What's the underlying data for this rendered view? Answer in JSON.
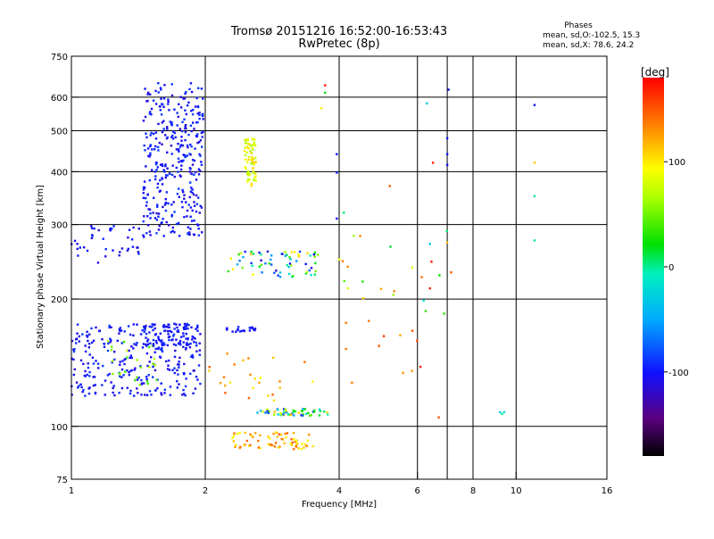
{
  "chart_data": {
    "type": "scatter",
    "title": "Tromsø 20151216 16:52:00-16:53:43",
    "subtitle": "RwPretec (8p)",
    "phases": {
      "heading": "Phases",
      "line_o": "mean, sd,O:-102.5, 15.3",
      "line_x": "mean, sd,X:  78.6, 24.2"
    },
    "xlabel": "Frequency [MHz]",
    "ylabel": "Stationary phase Virtual Height [km]",
    "x_scale": "log",
    "y_scale": "log",
    "xlim": [
      1,
      16
    ],
    "ylim": [
      75,
      750
    ],
    "x_ticks": [
      {
        "value": 1,
        "label": "1"
      },
      {
        "value": 2,
        "label": "2"
      },
      {
        "value": 4,
        "label": "4"
      },
      {
        "value": 6,
        "label": "6"
      },
      {
        "value": 8,
        "label": "8"
      },
      {
        "value": 10,
        "label": "10"
      },
      {
        "value": 16,
        "label": "16"
      }
    ],
    "x_gridlines": [
      2,
      4,
      6,
      7,
      8,
      10
    ],
    "y_ticks": [
      {
        "value": 75,
        "label": "75"
      },
      {
        "value": 100,
        "label": "100"
      },
      {
        "value": 200,
        "label": "200"
      },
      {
        "value": 300,
        "label": "300"
      },
      {
        "value": 400,
        "label": "400"
      },
      {
        "value": 500,
        "label": "500"
      },
      {
        "value": 600,
        "label": "600"
      },
      {
        "value": 750,
        "label": "750"
      }
    ],
    "y_gridlines": [
      100,
      200,
      300,
      400,
      500,
      600
    ],
    "grid": true,
    "colorbar": {
      "title": "[deg]",
      "range": [
        -180,
        180
      ],
      "ticks": [
        {
          "value": 100,
          "label": "100"
        },
        {
          "value": 0,
          "label": "0"
        },
        {
          "value": -100,
          "label": "-100"
        }
      ]
    },
    "clusters": [
      {
        "f": [
          1.45,
          1.98
        ],
        "h": [
          280,
          650
        ],
        "phase": [
          -115,
          -85
        ],
        "n": 340
      },
      {
        "f": [
          1.0,
          1.45
        ],
        "h": [
          240,
          300
        ],
        "phase": [
          -115,
          -90
        ],
        "n": 40
      },
      {
        "f": [
          1.0,
          1.95
        ],
        "h": [
          118,
          175
        ],
        "phase": [
          -115,
          -85
        ],
        "n": 280
      },
      {
        "f": [
          1.2,
          1.6
        ],
        "h": [
          125,
          160
        ],
        "phase": [
          30,
          80
        ],
        "n": 25
      },
      {
        "f": [
          1.45,
          1.95
        ],
        "h": [
          155,
          175
        ],
        "phase": [
          -110,
          -90
        ],
        "n": 80
      },
      {
        "f": [
          2.45,
          2.6
        ],
        "h": [
          370,
          480
        ],
        "phase": [
          60,
          110
        ],
        "n": 70
      },
      {
        "f": [
          2.2,
          2.6
        ],
        "h": [
          165,
          172
        ],
        "phase": [
          -110,
          -90
        ],
        "n": 20
      },
      {
        "f": [
          2.25,
          3.6
        ],
        "h": [
          225,
          260
        ],
        "phase": [
          -120,
          110
        ],
        "n": 70
      },
      {
        "f": [
          2.6,
          3.8
        ],
        "h": [
          106,
          110
        ],
        "phase": [
          -100,
          120
        ],
        "n": 60
      },
      {
        "f": [
          2.3,
          3.5
        ],
        "h": [
          88,
          97
        ],
        "phase": [
          90,
          150
        ],
        "n": 70
      },
      {
        "f": [
          2.0,
          3.6
        ],
        "h": [
          115,
          150
        ],
        "phase": [
          90,
          150
        ],
        "n": 25
      },
      {
        "f": [
          4.0,
          7.5
        ],
        "h": [
          180,
          290
        ],
        "phase": [
          -30,
          150
        ],
        "n": 22
      },
      {
        "f": [
          4.0,
          6.2
        ],
        "h": [
          120,
          190
        ],
        "phase": [
          120,
          175
        ],
        "n": 12
      }
    ],
    "points": [
      {
        "f": 3.72,
        "h": 640,
        "phase": 170
      },
      {
        "f": 3.72,
        "h": 615,
        "phase": 20
      },
      {
        "f": 3.65,
        "h": 565,
        "phase": 100
      },
      {
        "f": 3.95,
        "h": 440,
        "phase": -100
      },
      {
        "f": 3.95,
        "h": 398,
        "phase": -100
      },
      {
        "f": 4.1,
        "h": 320,
        "phase": 5
      },
      {
        "f": 3.95,
        "h": 310,
        "phase": -100
      },
      {
        "f": 5.2,
        "h": 370,
        "phase": 150
      },
      {
        "f": 6.3,
        "h": 580,
        "phase": -30
      },
      {
        "f": 7.05,
        "h": 625,
        "phase": -100
      },
      {
        "f": 7.0,
        "h": 480,
        "phase": -100
      },
      {
        "f": 7.0,
        "h": 440,
        "phase": -100
      },
      {
        "f": 7.0,
        "h": 415,
        "phase": -100
      },
      {
        "f": 6.5,
        "h": 420,
        "phase": 170
      },
      {
        "f": 11.0,
        "h": 575,
        "phase": -100
      },
      {
        "f": 11.0,
        "h": 420,
        "phase": 110
      },
      {
        "f": 11.0,
        "h": 350,
        "phase": 0
      },
      {
        "f": 11.0,
        "h": 275,
        "phase": 0
      },
      {
        "f": 9.2,
        "h": 108,
        "phase": -30
      },
      {
        "f": 9.3,
        "h": 107,
        "phase": 0
      },
      {
        "f": 9.4,
        "h": 108,
        "phase": -20
      },
      {
        "f": 6.7,
        "h": 105,
        "phase": 150
      },
      {
        "f": 6.4,
        "h": 270,
        "phase": -30
      },
      {
        "f": 6.45,
        "h": 245,
        "phase": 170
      },
      {
        "f": 6.4,
        "h": 212,
        "phase": 170
      }
    ]
  }
}
